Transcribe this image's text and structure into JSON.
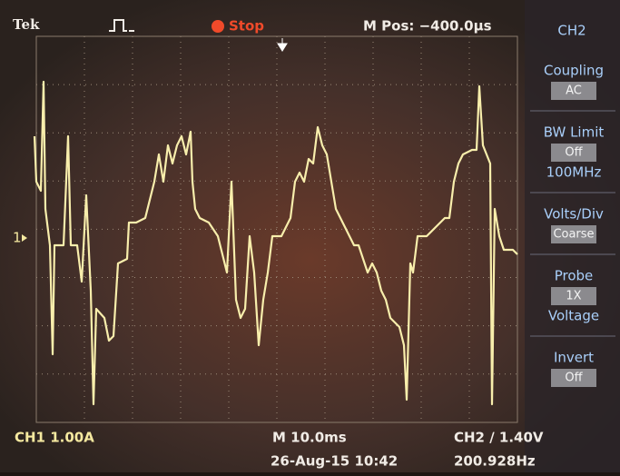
{
  "header": {
    "brand": "Tek",
    "status": "Stop",
    "position": "M Pos: −400.0µs",
    "channel": "CH2"
  },
  "marker": "1",
  "menu": [
    {
      "label": "Coupling",
      "value": "AC"
    },
    {
      "label": "BW Limit",
      "value": "Off",
      "detail": "100MHz"
    },
    {
      "label": "Volts/Div",
      "value": "Coarse"
    },
    {
      "label": "Probe",
      "value": "1X",
      "detail": "Voltage"
    },
    {
      "label": "Invert",
      "value": "Off"
    }
  ],
  "footer": {
    "ch1": "CH1 1.00A",
    "timebase": "M 10.0ms",
    "trigger": "CH2 ∕ 1.40V",
    "datetime": "26-Aug-15 10:42",
    "frequency": "200.928Hz"
  }
}
